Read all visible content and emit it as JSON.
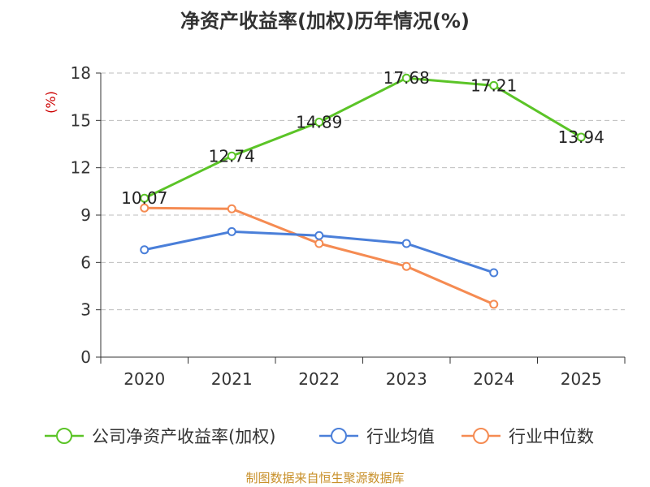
{
  "chart_data": {
    "type": "line",
    "title": "净资产收益率(加权)历年情况(%)",
    "ylabel": "(%)",
    "xlabel": "",
    "categories": [
      "2020",
      "2021",
      "2022",
      "2023",
      "2024",
      "2025"
    ],
    "ylim": [
      0,
      18
    ],
    "yticks": [
      0,
      3,
      6,
      9,
      12,
      15,
      18
    ],
    "grid": true,
    "legend_position": "bottom",
    "series": [
      {
        "name": "公司净资产收益率(加权)",
        "color": "#5bc427",
        "values": [
          10.07,
          12.74,
          14.89,
          17.68,
          17.21,
          13.94
        ],
        "labels": [
          "10.07",
          "12.74",
          "14.89",
          "17.68",
          "17.21",
          "13.94"
        ]
      },
      {
        "name": "行业均值",
        "color": "#4a7fd9",
        "values": [
          6.8,
          7.95,
          7.7,
          7.2,
          5.35,
          null
        ]
      },
      {
        "name": "行业中位数",
        "color": "#f58b52",
        "values": [
          9.45,
          9.4,
          7.2,
          5.75,
          3.35,
          null
        ]
      }
    ],
    "source": "制图数据来自恒生聚源数据库"
  }
}
